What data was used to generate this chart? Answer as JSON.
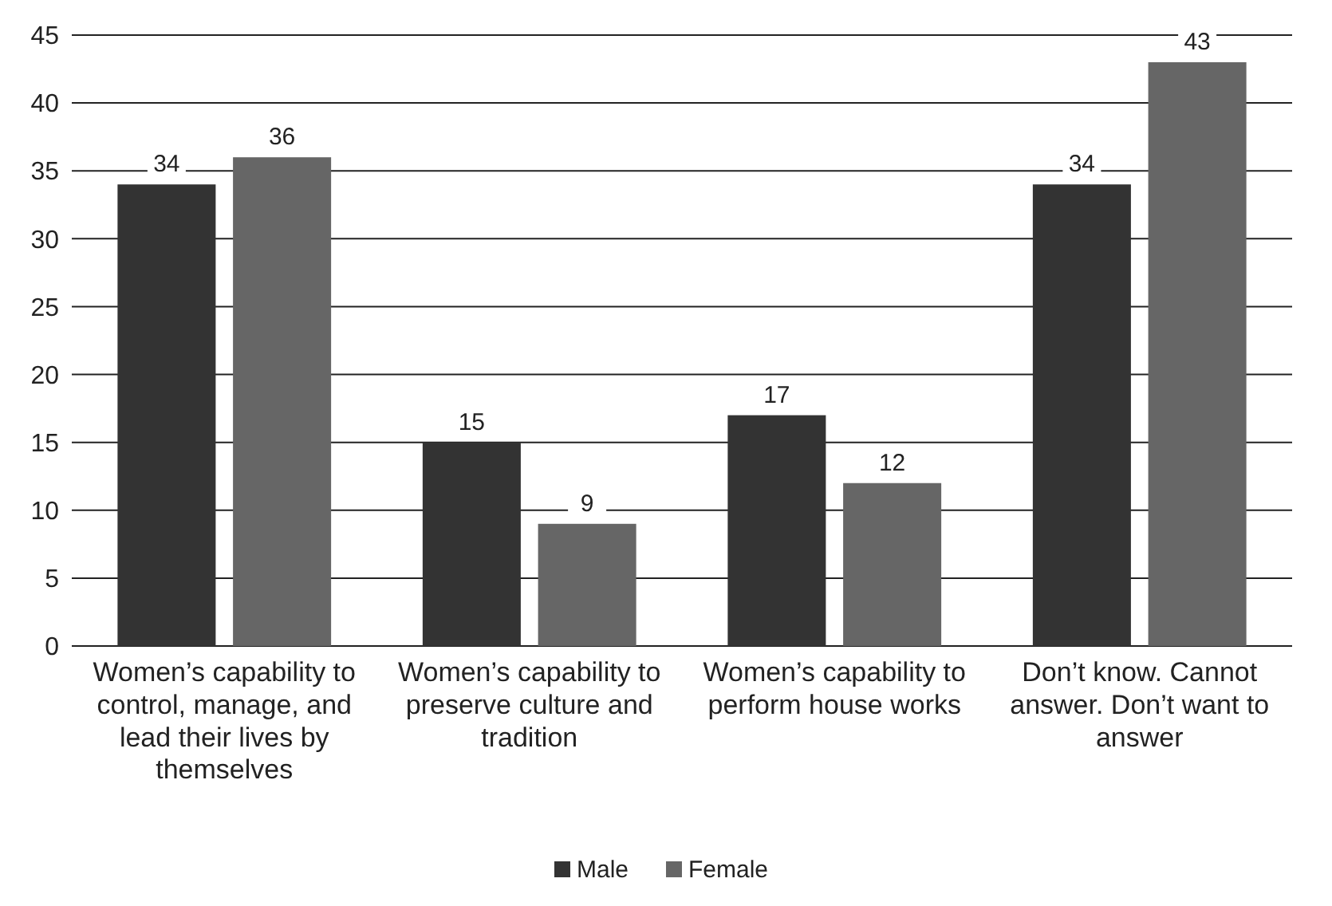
{
  "chart_data": {
    "type": "bar",
    "categories": [
      "Women’s capability to control, manage, and lead their lives by themselves",
      "Women’s capability to preserve culture and tradition",
      "Women’s capability to perform house works",
      "Don’t know. Cannot answer. Don’t want to answer"
    ],
    "series": [
      {
        "name": "Male",
        "color": "#333333",
        "values": [
          34,
          15,
          17,
          34
        ]
      },
      {
        "name": "Female",
        "color": "#666666",
        "values": [
          36,
          9,
          12,
          43
        ]
      }
    ],
    "ylim": [
      0,
      45
    ],
    "yticks": [
      0,
      5,
      10,
      15,
      20,
      25,
      30,
      35,
      40,
      45
    ],
    "grid": "y",
    "legend": "bottom",
    "data_labels": true
  }
}
